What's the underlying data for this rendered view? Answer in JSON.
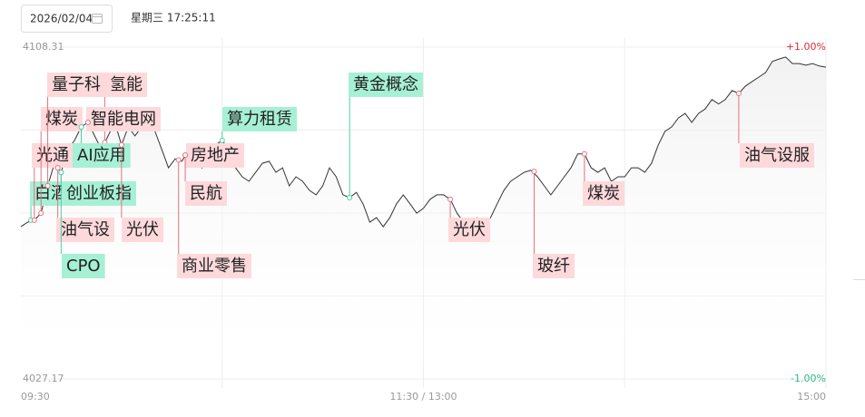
{
  "header": {
    "date": "2026/02/04",
    "time": "星期三 17:25:11"
  },
  "chart_data": {
    "type": "line",
    "x": [
      0,
      2,
      4,
      6,
      8,
      10,
      12,
      14,
      16,
      18,
      20,
      22,
      24,
      26,
      28,
      30,
      32,
      34,
      36,
      38,
      40,
      42,
      44,
      46,
      48,
      50,
      52,
      54,
      56,
      58,
      60,
      62,
      64,
      66,
      68,
      70,
      72,
      74,
      76,
      78,
      80,
      82,
      84,
      86,
      88,
      90,
      92,
      94,
      96,
      98,
      100,
      102,
      104,
      106,
      108,
      110,
      112,
      114,
      116,
      118,
      120,
      122,
      124,
      126,
      128,
      130,
      132,
      134,
      136,
      138,
      140,
      142,
      144,
      146,
      148,
      150,
      152,
      154,
      156,
      158,
      160,
      162,
      164,
      166,
      168,
      170,
      172,
      174,
      176,
      178,
      180,
      182,
      184,
      186,
      188,
      190,
      192,
      194,
      196,
      198,
      200,
      202,
      204,
      206,
      208,
      210,
      212,
      214,
      216,
      218,
      220,
      222,
      224,
      226,
      228,
      230,
      232,
      234,
      236,
      238,
      240
    ],
    "series": [
      {
        "color": "#333333",
        "values": [
          4064.4,
          4065.5,
          4066.0,
          4067.7,
          4074.4,
          4079.9,
          4077.7,
          4083.3,
          4085.5,
          4088.8,
          4089.9,
          4086.6,
          4083.3,
          4086.6,
          4089.9,
          4084.4,
          4088.8,
          4086.6,
          4088.8,
          4092.1,
          4087.7,
          4083.3,
          4078.8,
          4081.0,
          4080.4,
          4083.3,
          4084.4,
          4078.8,
          4082.2,
          4084.4,
          4085.5,
          4083.3,
          4078.8,
          4076.6,
          4075.5,
          4077.7,
          4079.9,
          4080.4,
          4077.7,
          4078.8,
          4074.4,
          4076.6,
          4075.5,
          4073.3,
          4072.2,
          4074.4,
          4078.8,
          4076.6,
          4072.2,
          4071.5,
          4072.8,
          4070.0,
          4065.5,
          4066.6,
          4064.4,
          4066.6,
          4070.0,
          4072.2,
          4070.0,
          4067.7,
          4068.9,
          4071.1,
          4072.2,
          4072.2,
          4071.1,
          4067.7,
          4065.5,
          4064.4,
          4066.6,
          4065.5,
          4066.6,
          4070.0,
          4073.3,
          4075.5,
          4076.6,
          4077.7,
          4078.2,
          4076.6,
          4074.4,
          4072.2,
          4074.4,
          4076.6,
          4078.8,
          4082.2,
          4082.2,
          4078.8,
          4077.7,
          4078.8,
          4075.5,
          4076.6,
          4076.6,
          4078.8,
          4078.8,
          4077.7,
          4079.9,
          4084.4,
          4087.7,
          4088.8,
          4091.0,
          4092.1,
          4089.9,
          4092.1,
          4093.2,
          4095.5,
          4094.4,
          4095.5,
          4097.7,
          4097.0,
          4098.8,
          4099.9,
          4101.0,
          4102.1,
          4104.8,
          4105.4,
          4105.9,
          4104.3,
          4104.3,
          4103.9,
          4104.3,
          4103.7,
          4103.4
        ]
      }
    ],
    "xlim": [
      0,
      240
    ],
    "xticks": [
      {
        "value": 0,
        "label": "09:30"
      },
      {
        "value": 120,
        "label": "11:30 / 13:00"
      },
      {
        "value": 240,
        "label": "15:00"
      }
    ],
    "ylim": [
      4027.17,
      4108.31
    ],
    "yticks": [
      4027.17,
      4108.31
    ],
    "y2lim": [
      -1,
      1
    ],
    "y2ticks": [
      {
        "value": 1,
        "label": "+1.00%"
      },
      {
        "value": -1,
        "label": "-1.00%"
      }
    ],
    "grid": true,
    "annotations": [
      {
        "text": "白酒",
        "x": 3,
        "y": 4066.0,
        "color": "green"
      },
      {
        "text": "光通",
        "x": 4,
        "y": 4066.0,
        "color": "red"
      },
      {
        "text": "煤炭",
        "x": 6,
        "y": 4067.7,
        "color": "red"
      },
      {
        "text": "量子科",
        "x": 8,
        "y": 4074.4,
        "color": "red"
      },
      {
        "text": "氢能",
        "x": 25,
        "y": 4085.0,
        "color": "red"
      },
      {
        "text": "智能电网",
        "x": 20,
        "y": 4089.9,
        "color": "red"
      },
      {
        "text": "AI应用",
        "x": 18,
        "y": 4088.8,
        "color": "green"
      },
      {
        "text": "创业板指",
        "x": 12,
        "y": 4077.7,
        "color": "green"
      },
      {
        "text": "油气设",
        "x": 11,
        "y": 4078.8,
        "color": "red"
      },
      {
        "text": "光伏",
        "x": 30,
        "y": 4084.4,
        "color": "red"
      },
      {
        "text": "CPO",
        "x": 12,
        "y": 4077.7,
        "color": "green"
      },
      {
        "text": "房地产",
        "x": 49,
        "y": 4081.9,
        "color": "red"
      },
      {
        "text": "民航",
        "x": 49,
        "y": 4081.9,
        "color": "red"
      },
      {
        "text": "商业零售",
        "x": 47,
        "y": 4080.7,
        "color": "red"
      },
      {
        "text": "算力租赁",
        "x": 60,
        "y": 4085.5,
        "color": "green"
      },
      {
        "text": "黄金概念",
        "x": 98,
        "y": 4071.5,
        "color": "green"
      },
      {
        "text": "光伏",
        "x": 128,
        "y": 4071.1,
        "color": "red"
      },
      {
        "text": "玻纤",
        "x": 153,
        "y": 4077.9,
        "color": "red"
      },
      {
        "text": "煤炭",
        "x": 168,
        "y": 4082.2,
        "color": "red"
      },
      {
        "text": "油气设服",
        "x": 214,
        "y": 4097.0,
        "color": "red"
      }
    ]
  }
}
